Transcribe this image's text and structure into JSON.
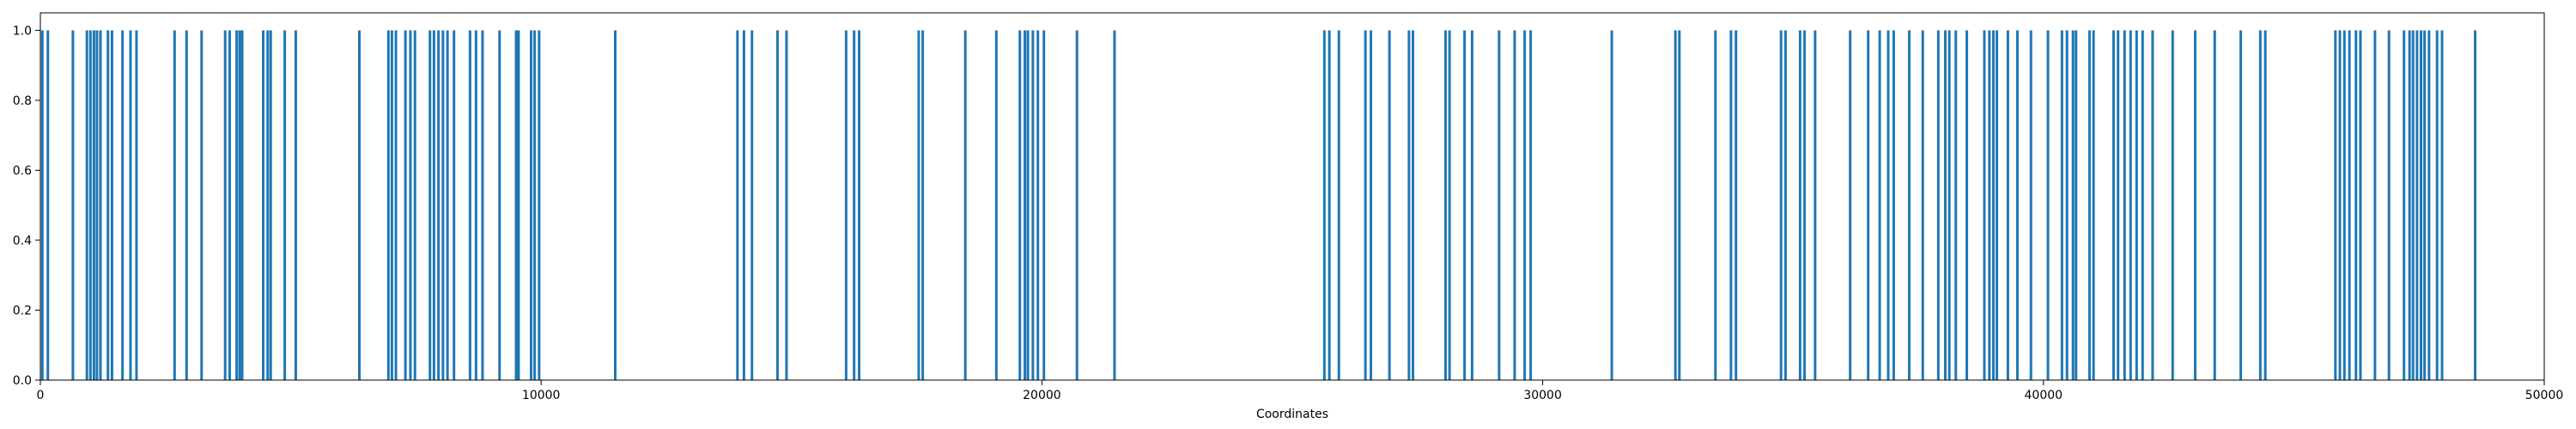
{
  "chart_data": {
    "type": "bar",
    "title": "",
    "xlabel": "Coordinates",
    "ylabel": "",
    "xlim": [
      0,
      50000
    ],
    "ylim": [
      0,
      1.05
    ],
    "grid": false,
    "legend": "none",
    "bar_color": "#1f77b4",
    "x_ticks": [
      {
        "value": 0,
        "label": "0"
      },
      {
        "value": 10000,
        "label": "10000"
      },
      {
        "value": 20000,
        "label": "20000"
      },
      {
        "value": 30000,
        "label": "30000"
      },
      {
        "value": 40000,
        "label": "40000"
      },
      {
        "value": 50000,
        "label": "50000"
      }
    ],
    "y_ticks": [
      {
        "value": 0.0,
        "label": "0.0"
      },
      {
        "value": 0.2,
        "label": "0.2"
      },
      {
        "value": 0.4,
        "label": "0.4"
      },
      {
        "value": 0.6,
        "label": "0.6"
      },
      {
        "value": 0.8,
        "label": "0.8"
      },
      {
        "value": 1.0,
        "label": "1.0"
      }
    ],
    "bar_value": 1.0,
    "x": [
      40,
      150,
      650,
      930,
      1000,
      1070,
      1130,
      1200,
      1350,
      1430,
      1640,
      1800,
      1920,
      2680,
      2920,
      3220,
      3690,
      3780,
      3920,
      3980,
      4030,
      4450,
      4540,
      4600,
      4880,
      5100,
      6370,
      6950,
      7020,
      7100,
      7290,
      7390,
      7480,
      7780,
      7860,
      7950,
      8040,
      8130,
      8260,
      8580,
      8700,
      8830,
      9170,
      9500,
      9550,
      9800,
      9870,
      9960,
      11480,
      13920,
      14050,
      14210,
      14720,
      14900,
      16090,
      16250,
      16350,
      17540,
      17620,
      18470,
      19090,
      19560,
      19660,
      19720,
      19820,
      19920,
      20040,
      20700,
      21450,
      25640,
      25740,
      25930,
      26460,
      26570,
      26940,
      27330,
      27410,
      28060,
      28140,
      28440,
      28590,
      29130,
      29440,
      29640,
      29760,
      31380,
      32650,
      32730,
      33450,
      33760,
      33860,
      34760,
      34850,
      35140,
      35230,
      35440,
      36140,
      36500,
      36730,
      36900,
      37010,
      37320,
      37590,
      37900,
      38040,
      38120,
      38250,
      38470,
      38820,
      38920,
      39000,
      39070,
      39290,
      39480,
      39750,
      40090,
      40370,
      40470,
      40590,
      40650,
      40920,
      41000,
      41400,
      41490,
      41620,
      41740,
      41860,
      41980,
      42180,
      42580,
      43030,
      43420,
      43940,
      44330,
      44430,
      45830,
      45920,
      46010,
      46110,
      46240,
      46330,
      46620,
      46900,
      47200,
      47310,
      47380,
      47460,
      47540,
      47610,
      47700,
      47860,
      47960,
      48620
    ]
  }
}
